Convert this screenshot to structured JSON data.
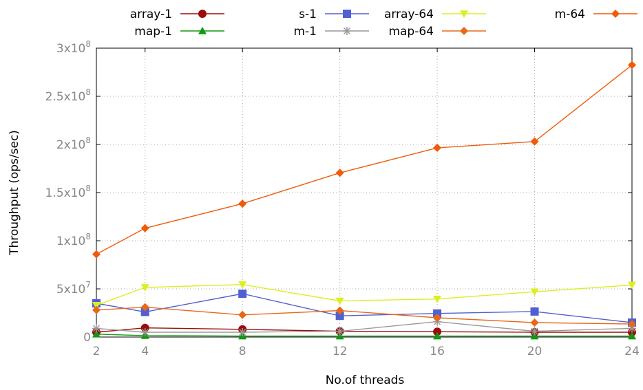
{
  "chart_data": {
    "type": "line",
    "title": "",
    "xlabel": "No.of threads",
    "ylabel": "Throughput (ops/sec)",
    "x": [
      2,
      4,
      8,
      12,
      16,
      20,
      24
    ],
    "x_ticks": [
      "2",
      "4",
      "8",
      "12",
      "16",
      "20",
      "24"
    ],
    "xlim": [
      2,
      24
    ],
    "ylim": [
      0,
      300000000
    ],
    "y_ticks": [
      {
        "value": 0,
        "mantissa": "0",
        "exp": ""
      },
      {
        "value": 50000000,
        "mantissa": "5x10",
        "exp": "7"
      },
      {
        "value": 100000000,
        "mantissa": "1x10",
        "exp": "8"
      },
      {
        "value": 150000000,
        "mantissa": "1.5x10",
        "exp": "8"
      },
      {
        "value": 200000000,
        "mantissa": "2x10",
        "exp": "8"
      },
      {
        "value": 250000000,
        "mantissa": "2.5x10",
        "exp": "8"
      },
      {
        "value": 300000000,
        "mantissa": "3x10",
        "exp": "8"
      }
    ],
    "grid": true,
    "legend_position": "top",
    "series": [
      {
        "name": "array-1",
        "color": "#9b0c0c",
        "marker": "circle",
        "values": [
          5000000,
          9500000,
          8000000,
          6000000,
          5500000,
          5000000,
          5000000
        ]
      },
      {
        "name": "map-1",
        "color": "#119911",
        "marker": "triangle-up",
        "values": [
          3000000,
          1500000,
          1000000,
          1000000,
          1000000,
          1000000,
          1000000
        ]
      },
      {
        "name": "s-1",
        "color": "#5060d0",
        "marker": "square",
        "values": [
          35000000,
          26000000,
          45000000,
          22000000,
          24500000,
          26500000,
          15000000
        ]
      },
      {
        "name": "m-1",
        "color": "#999999",
        "marker": "star",
        "values": [
          9000000,
          5000000,
          5000000,
          6000000,
          16000000,
          6000000,
          9000000
        ]
      },
      {
        "name": "array-64",
        "color": "#ddee22",
        "marker": "triangle-down",
        "values": [
          33000000,
          51500000,
          54500000,
          37500000,
          39500000,
          47000000,
          54000000
        ]
      },
      {
        "name": "map-64",
        "color": "#e86818",
        "marker": "diamond",
        "values": [
          28000000,
          31000000,
          23000000,
          27500000,
          20000000,
          15000000,
          13500000
        ]
      },
      {
        "name": "m-64",
        "color": "#f05a0a",
        "marker": "diamond",
        "values": [
          86000000,
          113000000,
          138500000,
          170500000,
          196500000,
          203000000,
          282500000
        ]
      }
    ]
  }
}
